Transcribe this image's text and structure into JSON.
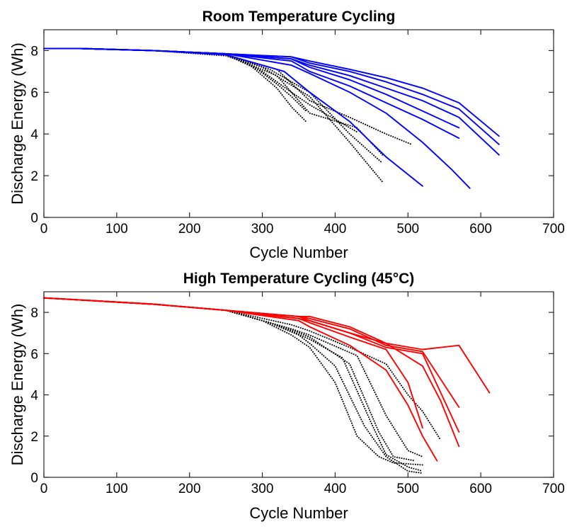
{
  "chart_data": [
    {
      "type": "line",
      "title": "Room Temperature Cycling",
      "xlabel": "Cycle Number",
      "ylabel": "Discharge Energy (Wh)",
      "xlim": [
        0,
        700
      ],
      "ylim": [
        0,
        9
      ],
      "xticks": [
        0,
        100,
        200,
        300,
        400,
        500,
        600,
        700
      ],
      "yticks": [
        0,
        2,
        4,
        6,
        8
      ],
      "grid": false,
      "series": [
        {
          "style": "dotted",
          "color": "#000000",
          "x": [
            0,
            50,
            150,
            250,
            280,
            320,
            340,
            360
          ],
          "y": [
            8.1,
            8.1,
            8.0,
            7.75,
            7.4,
            6.2,
            5.3,
            4.6
          ]
        },
        {
          "style": "dotted",
          "color": "#000000",
          "x": [
            0,
            50,
            150,
            250,
            290,
            320,
            340,
            360
          ],
          "y": [
            8.1,
            8.1,
            8.0,
            7.8,
            7.2,
            6.4,
            5.8,
            5.1
          ]
        },
        {
          "style": "dotted",
          "color": "#000000",
          "x": [
            0,
            50,
            150,
            250,
            300,
            340,
            365,
            400,
            430
          ],
          "y": [
            8.1,
            8.1,
            8.0,
            7.8,
            7.0,
            6.0,
            5.4,
            4.7,
            4.1
          ]
        },
        {
          "style": "dotted",
          "color": "#000000",
          "x": [
            0,
            50,
            150,
            250,
            300,
            365,
            420,
            465
          ],
          "y": [
            8.1,
            8.1,
            8.0,
            7.8,
            7.2,
            5.8,
            3.6,
            1.7
          ]
        },
        {
          "style": "dotted",
          "color": "#000000",
          "x": [
            0,
            50,
            150,
            250,
            310,
            365,
            420,
            465
          ],
          "y": [
            8.1,
            8.1,
            8.0,
            7.8,
            7.1,
            6.0,
            4.0,
            2.6
          ]
        },
        {
          "style": "dotted",
          "color": "#000000",
          "x": [
            0,
            50,
            150,
            250,
            320,
            365,
            430,
            465
          ],
          "y": [
            8.1,
            8.1,
            8.0,
            7.8,
            6.8,
            5.0,
            4.3,
            3.0
          ]
        },
        {
          "style": "dotted",
          "color": "#000000",
          "x": [
            0,
            50,
            150,
            250,
            320,
            365,
            420,
            470,
            505
          ],
          "y": [
            8.1,
            8.1,
            8.0,
            7.8,
            7.1,
            5.6,
            4.8,
            4.0,
            3.5
          ]
        },
        {
          "style": "solid",
          "color": "#0000ff",
          "x": [
            0,
            50,
            150,
            250,
            330,
            365,
            420,
            470,
            520
          ],
          "y": [
            8.1,
            8.1,
            8.0,
            7.8,
            7.0,
            6.0,
            4.6,
            2.9,
            1.5
          ]
        },
        {
          "style": "solid",
          "color": "#0000ff",
          "x": [
            0,
            50,
            150,
            250,
            340,
            365,
            420,
            470,
            520,
            560,
            585
          ],
          "y": [
            8.1,
            8.1,
            8.0,
            7.85,
            7.3,
            6.9,
            6.0,
            5.0,
            3.6,
            2.3,
            1.4
          ]
        },
        {
          "style": "solid",
          "color": "#0000ff",
          "x": [
            0,
            50,
            150,
            250,
            340,
            365,
            420,
            470,
            520,
            570
          ],
          "y": [
            8.1,
            8.1,
            8.0,
            7.85,
            7.5,
            7.0,
            6.3,
            5.5,
            4.7,
            3.8
          ]
        },
        {
          "style": "solid",
          "color": "#0000ff",
          "x": [
            0,
            50,
            150,
            250,
            340,
            365,
            420,
            470,
            520,
            570
          ],
          "y": [
            8.1,
            8.1,
            8.0,
            7.85,
            7.6,
            7.2,
            6.6,
            5.9,
            5.1,
            4.3
          ]
        },
        {
          "style": "solid",
          "color": "#0000ff",
          "x": [
            0,
            50,
            150,
            250,
            340,
            365,
            420,
            470,
            520,
            570,
            625
          ],
          "y": [
            8.1,
            8.1,
            8.0,
            7.85,
            7.6,
            7.3,
            6.8,
            6.2,
            5.6,
            4.8,
            3.0
          ]
        },
        {
          "style": "solid",
          "color": "#0000ff",
          "x": [
            0,
            50,
            150,
            250,
            340,
            365,
            420,
            470,
            520,
            570,
            625
          ],
          "y": [
            8.1,
            8.1,
            8.0,
            7.85,
            7.7,
            7.4,
            7.0,
            6.5,
            5.9,
            5.2,
            3.5
          ]
        },
        {
          "style": "solid",
          "color": "#0000ff",
          "x": [
            0,
            50,
            150,
            250,
            340,
            365,
            420,
            470,
            520,
            570,
            625
          ],
          "y": [
            8.1,
            8.1,
            8.0,
            7.85,
            7.7,
            7.5,
            7.1,
            6.7,
            6.2,
            5.5,
            3.9
          ]
        }
      ]
    },
    {
      "type": "line",
      "title": "High Temperature Cycling (45°C)",
      "xlabel": "Cycle Number",
      "ylabel": "Discharge Energy (Wh)",
      "xlim": [
        0,
        700
      ],
      "ylim": [
        0,
        9
      ],
      "xticks": [
        0,
        100,
        200,
        300,
        400,
        500,
        600,
        700
      ],
      "yticks": [
        0,
        2,
        4,
        6,
        8
      ],
      "grid": false,
      "series": [
        {
          "style": "dotted",
          "color": "#000000",
          "x": [
            0,
            50,
            150,
            250,
            300,
            340,
            365,
            400,
            430,
            460,
            480,
            520
          ],
          "y": [
            8.7,
            8.6,
            8.4,
            8.1,
            7.6,
            6.9,
            6.3,
            4.6,
            2.0,
            1.0,
            0.7,
            0.6
          ]
        },
        {
          "style": "dotted",
          "color": "#000000",
          "x": [
            0,
            50,
            150,
            250,
            310,
            350,
            365,
            400,
            440,
            470,
            500,
            520
          ],
          "y": [
            8.7,
            8.6,
            8.4,
            8.1,
            7.5,
            6.9,
            6.5,
            5.4,
            2.5,
            1.0,
            0.3,
            0.2
          ]
        },
        {
          "style": "dotted",
          "color": "#000000",
          "x": [
            0,
            50,
            150,
            250,
            320,
            365,
            410,
            450,
            470,
            500,
            520
          ],
          "y": [
            8.7,
            8.6,
            8.4,
            8.1,
            7.4,
            6.7,
            5.8,
            2.6,
            1.1,
            0.5,
            0.3
          ]
        },
        {
          "style": "dotted",
          "color": "#000000",
          "x": [
            0,
            50,
            150,
            250,
            330,
            365,
            420,
            460,
            480,
            510
          ],
          "y": [
            8.7,
            8.6,
            8.4,
            8.1,
            7.3,
            6.8,
            5.5,
            2.2,
            1.0,
            0.8
          ]
        },
        {
          "style": "dotted",
          "color": "#000000",
          "x": [
            0,
            50,
            150,
            250,
            340,
            365,
            430,
            470,
            500,
            520
          ],
          "y": [
            8.7,
            8.6,
            8.4,
            8.1,
            7.2,
            6.9,
            5.9,
            3.0,
            1.3,
            1.0
          ]
        },
        {
          "style": "dotted",
          "color": "#000000",
          "x": [
            0,
            50,
            150,
            250,
            340,
            365,
            420,
            470,
            500,
            520,
            545
          ],
          "y": [
            8.7,
            8.6,
            8.4,
            8.1,
            7.4,
            7.1,
            6.3,
            5.5,
            4.0,
            3.2,
            1.8
          ]
        },
        {
          "style": "solid",
          "color": "#ff0000",
          "x": [
            0,
            50,
            150,
            250,
            350,
            365,
            420,
            470,
            500,
            520,
            540
          ],
          "y": [
            8.7,
            8.6,
            8.4,
            8.1,
            7.6,
            7.3,
            6.4,
            5.2,
            3.5,
            2.0,
            0.8
          ]
        },
        {
          "style": "solid",
          "color": "#ff0000",
          "x": [
            0,
            50,
            150,
            250,
            350,
            365,
            420,
            470,
            500,
            520
          ],
          "y": [
            8.7,
            8.6,
            8.4,
            8.1,
            7.7,
            7.5,
            6.8,
            6.2,
            4.6,
            2.4
          ]
        },
        {
          "style": "solid",
          "color": "#ff0000",
          "x": [
            0,
            50,
            150,
            250,
            350,
            365,
            420,
            470,
            520,
            545,
            570
          ],
          "y": [
            8.7,
            8.6,
            8.4,
            8.1,
            7.7,
            7.6,
            7.0,
            6.5,
            5.4,
            3.7,
            1.5
          ]
        },
        {
          "style": "solid",
          "color": "#ff0000",
          "x": [
            0,
            50,
            150,
            250,
            350,
            365,
            420,
            470,
            520,
            570
          ],
          "y": [
            8.7,
            8.6,
            8.4,
            8.1,
            7.8,
            7.6,
            7.0,
            6.3,
            6.0,
            2.2
          ]
        },
        {
          "style": "solid",
          "color": "#ff0000",
          "x": [
            0,
            50,
            150,
            250,
            350,
            365,
            420,
            470,
            520,
            570
          ],
          "y": [
            8.7,
            8.6,
            8.4,
            8.1,
            7.8,
            7.7,
            7.2,
            6.4,
            6.1,
            3.4
          ]
        },
        {
          "style": "solid",
          "color": "#ff0000",
          "x": [
            0,
            50,
            150,
            250,
            350,
            365,
            420,
            470,
            520,
            570,
            612
          ],
          "y": [
            8.7,
            8.6,
            8.4,
            8.1,
            7.8,
            7.8,
            7.3,
            6.5,
            6.2,
            6.4,
            4.1
          ]
        }
      ]
    }
  ]
}
